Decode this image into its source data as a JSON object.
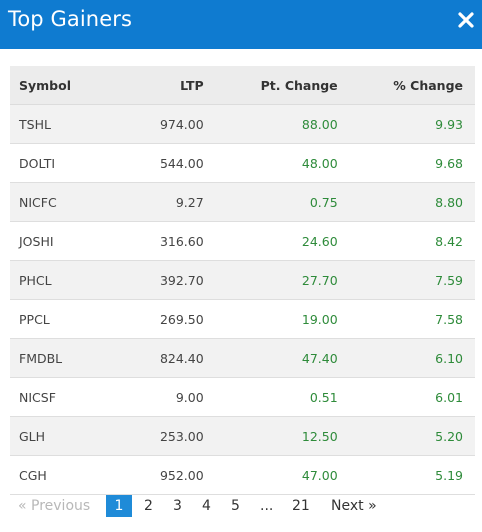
{
  "header": {
    "title": "Top Gainers"
  },
  "table": {
    "columns": [
      "Symbol",
      "LTP",
      "Pt. Change",
      "% Change"
    ],
    "rows": [
      {
        "symbol": "TSHL",
        "ltp": "974.00",
        "pt": "88.00",
        "pct": "9.93"
      },
      {
        "symbol": "DOLTI",
        "ltp": "544.00",
        "pt": "48.00",
        "pct": "9.68"
      },
      {
        "symbol": "NICFC",
        "ltp": "9.27",
        "pt": "0.75",
        "pct": "8.80"
      },
      {
        "symbol": "JOSHI",
        "ltp": "316.60",
        "pt": "24.60",
        "pct": "8.42"
      },
      {
        "symbol": "PHCL",
        "ltp": "392.70",
        "pt": "27.70",
        "pct": "7.59"
      },
      {
        "symbol": "PPCL",
        "ltp": "269.50",
        "pt": "19.00",
        "pct": "7.58"
      },
      {
        "symbol": "FMDBL",
        "ltp": "824.40",
        "pt": "47.40",
        "pct": "6.10"
      },
      {
        "symbol": "NICSF",
        "ltp": "9.00",
        "pt": "0.51",
        "pct": "6.01"
      },
      {
        "symbol": "GLH",
        "ltp": "253.00",
        "pt": "12.50",
        "pct": "5.20"
      },
      {
        "symbol": "CGH",
        "ltp": "952.00",
        "pt": "47.00",
        "pct": "5.19"
      }
    ]
  },
  "pagination": {
    "previous": "« Previous",
    "pages": [
      "1",
      "2",
      "3",
      "4",
      "5",
      "...",
      "21"
    ],
    "active": "1",
    "next": "Next »"
  },
  "colors": {
    "header_bg": "#0f7bd0",
    "positive": "#2e8b3a",
    "active_page": "#1f8bd8"
  },
  "icons": {
    "close": "close-icon"
  }
}
